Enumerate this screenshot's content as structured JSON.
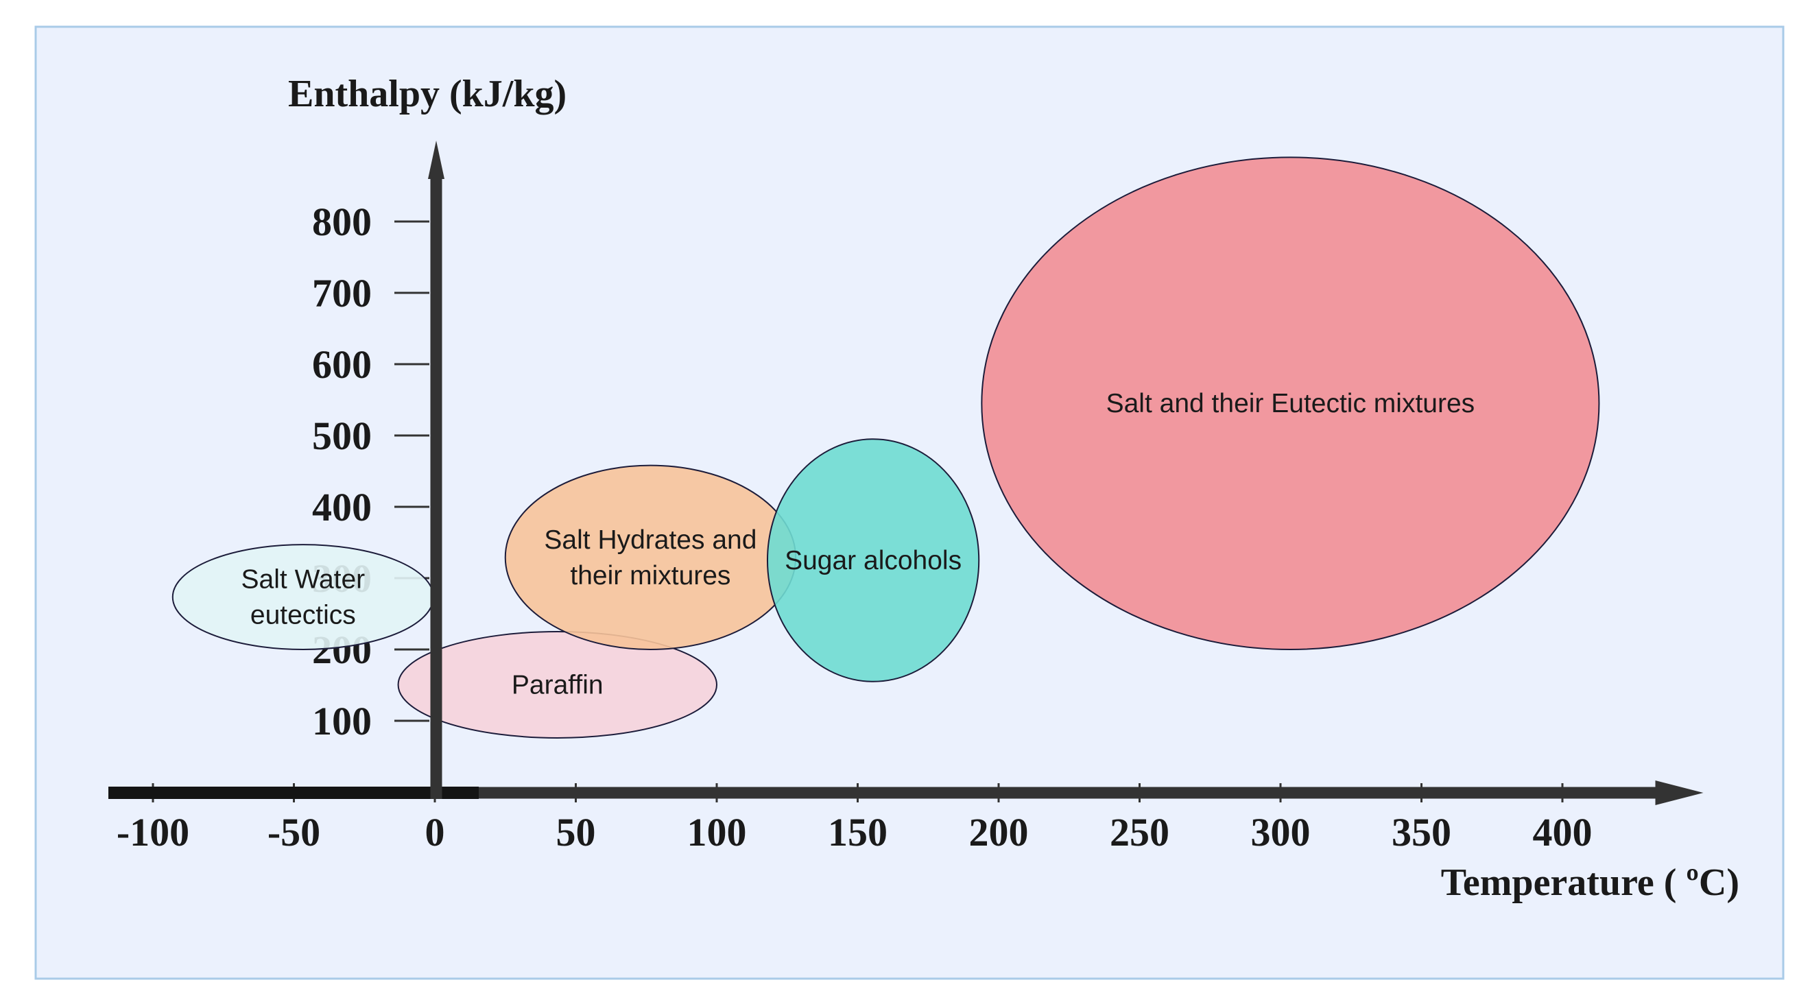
{
  "chart_data": {
    "type": "bubble-regions",
    "xlabel": "Temperature ( ºC)",
    "ylabel": "Enthalpy (kJ/kg)",
    "x_ticks": [
      -100,
      -50,
      0,
      50,
      100,
      150,
      200,
      250,
      300,
      350,
      400
    ],
    "y_ticks": [
      100,
      200,
      300,
      400,
      500,
      600,
      700,
      800
    ],
    "xlim": [
      -115,
      450
    ],
    "ylim": [
      0,
      920
    ],
    "regions": [
      {
        "label_lines": [
          "Salt Water",
          "eutectics"
        ],
        "x_min": -93,
        "x_max": -0.5,
        "y_min": 200,
        "y_max": 347,
        "color": "#e2f4f6"
      },
      {
        "label_lines": [
          "Paraffin"
        ],
        "x_min": -13,
        "x_max": 100,
        "y_min": 76,
        "y_max": 225,
        "color": "#f6d3dc"
      },
      {
        "label_lines": [
          "Salt Hydrates and",
          "their mixtures"
        ],
        "x_min": 25,
        "x_max": 128,
        "y_min": 200,
        "y_max": 458,
        "color": "#f7c39a"
      },
      {
        "label_lines": [
          "Sugar alcohols"
        ],
        "x_min": 118,
        "x_max": 193,
        "y_min": 155,
        "y_max": 495,
        "color": "#6fdcd2"
      },
      {
        "label_lines": [
          "Salt and their Eutectic mixtures"
        ],
        "x_min": 194,
        "x_max": 413,
        "y_min": 200,
        "y_max": 890,
        "color": "#f28e95"
      }
    ],
    "colors": {
      "panel_fill": "#ebf1fd",
      "panel_border": "#a9cbe8",
      "axis": "#333333",
      "outline": "#1c1c3a"
    }
  }
}
